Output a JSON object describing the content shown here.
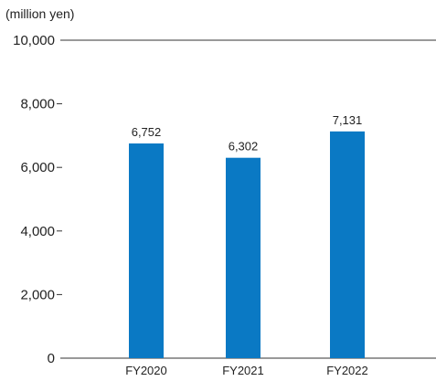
{
  "chart_data": {
    "type": "bar",
    "unit_label": "(million yen)",
    "categories": [
      "FY2020",
      "FY2021",
      "FY2022"
    ],
    "values": [
      6752,
      6302,
      7131
    ],
    "value_labels": [
      "6,752",
      "6,302",
      "7,131"
    ],
    "ylim": [
      0,
      10000
    ],
    "yticks": [
      0,
      2000,
      4000,
      6000,
      8000,
      10000
    ],
    "ytick_labels": [
      "0",
      "2,000",
      "4,000",
      "6,000",
      "8,000",
      "10,000"
    ],
    "bar_color": "#0a79c4",
    "axis_color": "#333333",
    "grid": false
  }
}
